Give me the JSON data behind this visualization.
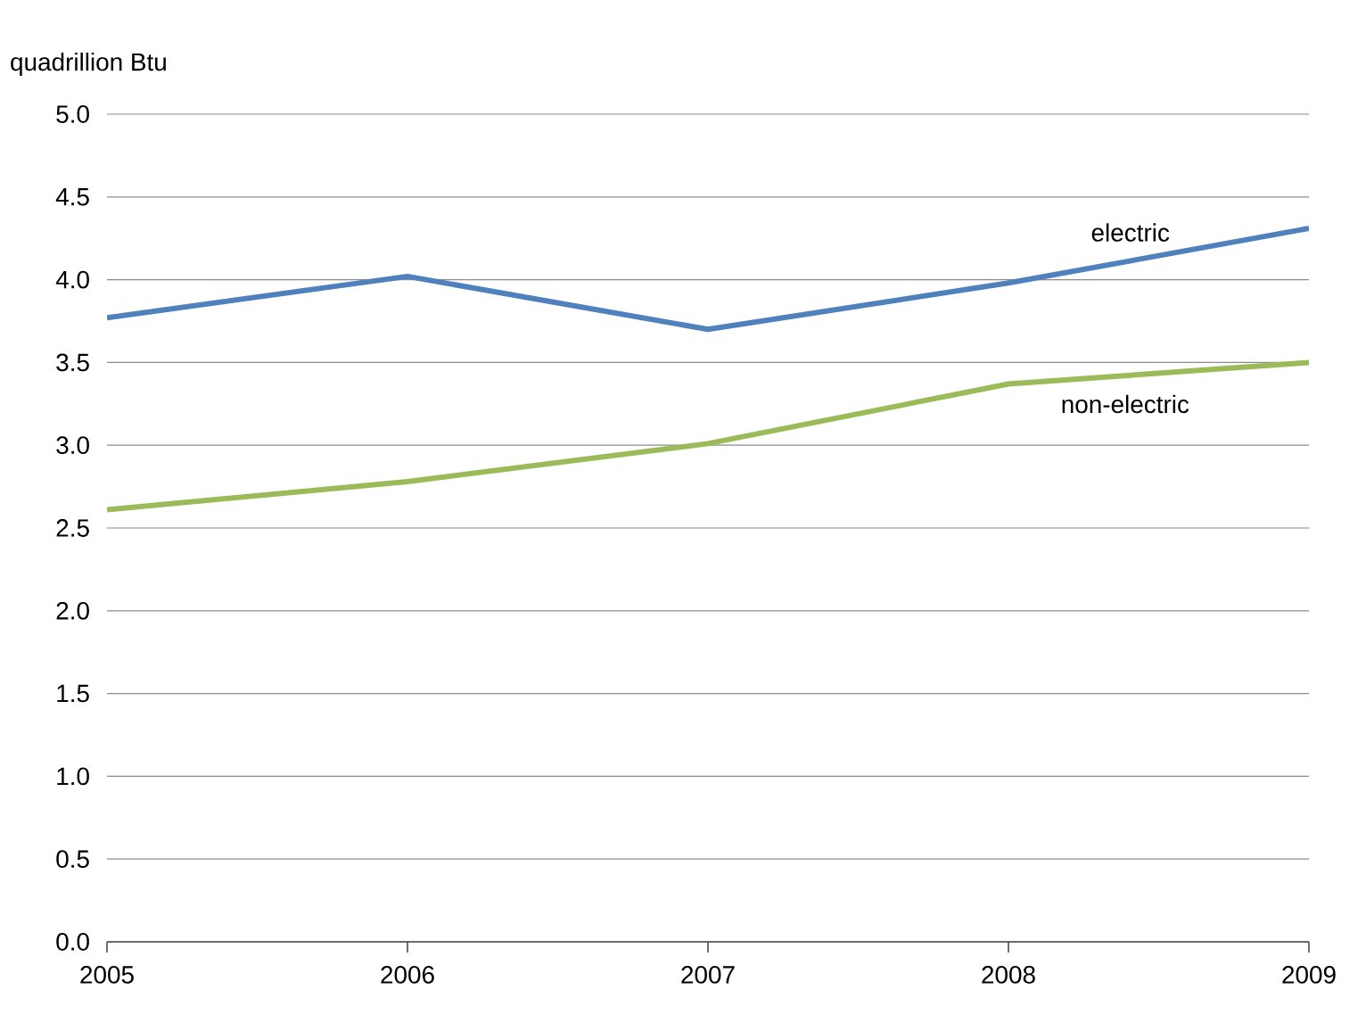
{
  "chart_data": {
    "type": "line",
    "ylabel": "quadrillion Btu",
    "x": [
      2005,
      2006,
      2007,
      2008,
      2009
    ],
    "series": [
      {
        "name": "electric",
        "color": "#4f81bd",
        "values": [
          3.77,
          4.02,
          3.7,
          3.98,
          4.31
        ]
      },
      {
        "name": "non-electric",
        "color": "#9bbb59",
        "values": [
          2.61,
          2.78,
          3.01,
          3.37,
          3.5
        ]
      }
    ],
    "xlim": [
      2005,
      2009
    ],
    "xticks": [
      2005,
      2006,
      2007,
      2008,
      2009
    ],
    "ylim": [
      0,
      5
    ],
    "yticks": [
      {
        "value": 0,
        "label": "0.0"
      },
      {
        "value": 0.5,
        "label": "0.5"
      },
      {
        "value": 1,
        "label": "1.0"
      },
      {
        "value": 1.5,
        "label": "1.5"
      },
      {
        "value": 2,
        "label": "2.0"
      },
      {
        "value": 2.5,
        "label": "2.5"
      },
      {
        "value": 3,
        "label": "3.0"
      },
      {
        "value": 3.5,
        "label": "3.5"
      },
      {
        "value": 4,
        "label": "4.0"
      },
      {
        "value": 4.5,
        "label": "4.5"
      },
      {
        "value": 5,
        "label": "5.0"
      }
    ],
    "grid": "y",
    "legend": false,
    "marker": "none",
    "line_style": "solid"
  }
}
